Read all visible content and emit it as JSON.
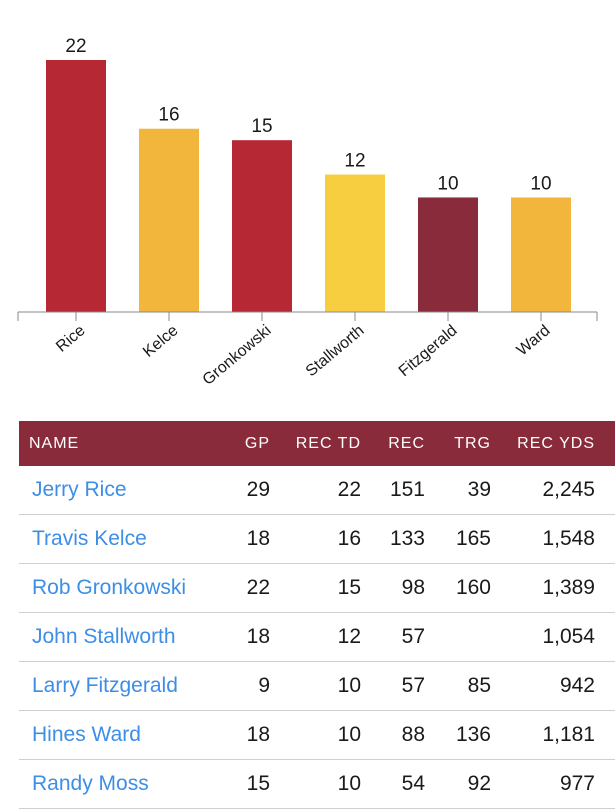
{
  "chart_data": {
    "type": "bar",
    "categories": [
      "Rice",
      "Kelce",
      "Gronkowski",
      "Stallworth",
      "Fitzgerald",
      "Ward"
    ],
    "values": [
      22,
      16,
      15,
      12,
      10,
      10
    ],
    "colors": [
      "#b62834",
      "#f2b63c",
      "#b62834",
      "#f6ce3f",
      "#8a2b3c",
      "#f2b63c"
    ],
    "ylim": [
      0,
      22
    ],
    "grid": false,
    "legend": "none",
    "title": "",
    "xlabel": "",
    "ylabel": ""
  },
  "table": {
    "columns": [
      "NAME",
      "GP",
      "REC TD",
      "REC",
      "TRG",
      "REC YDS"
    ],
    "header_color": "#8a2b3c",
    "link_color": "#3d8ee6",
    "rows": [
      {
        "name": "Jerry Rice",
        "gp": "29",
        "rec_td": "22",
        "rec": "151",
        "trg": "39",
        "rec_yds": "2,245"
      },
      {
        "name": "Travis Kelce",
        "gp": "18",
        "rec_td": "16",
        "rec": "133",
        "trg": "165",
        "rec_yds": "1,548"
      },
      {
        "name": "Rob Gronkowski",
        "gp": "22",
        "rec_td": "15",
        "rec": "98",
        "trg": "160",
        "rec_yds": "1,389"
      },
      {
        "name": "John Stallworth",
        "gp": "18",
        "rec_td": "12",
        "rec": "57",
        "trg": "",
        "rec_yds": "1,054"
      },
      {
        "name": "Larry Fitzgerald",
        "gp": "9",
        "rec_td": "10",
        "rec": "57",
        "trg": "85",
        "rec_yds": "942"
      },
      {
        "name": "Hines Ward",
        "gp": "18",
        "rec_td": "10",
        "rec": "88",
        "trg": "136",
        "rec_yds": "1,181"
      },
      {
        "name": "Randy Moss",
        "gp": "15",
        "rec_td": "10",
        "rec": "54",
        "trg": "92",
        "rec_yds": "977"
      }
    ]
  }
}
